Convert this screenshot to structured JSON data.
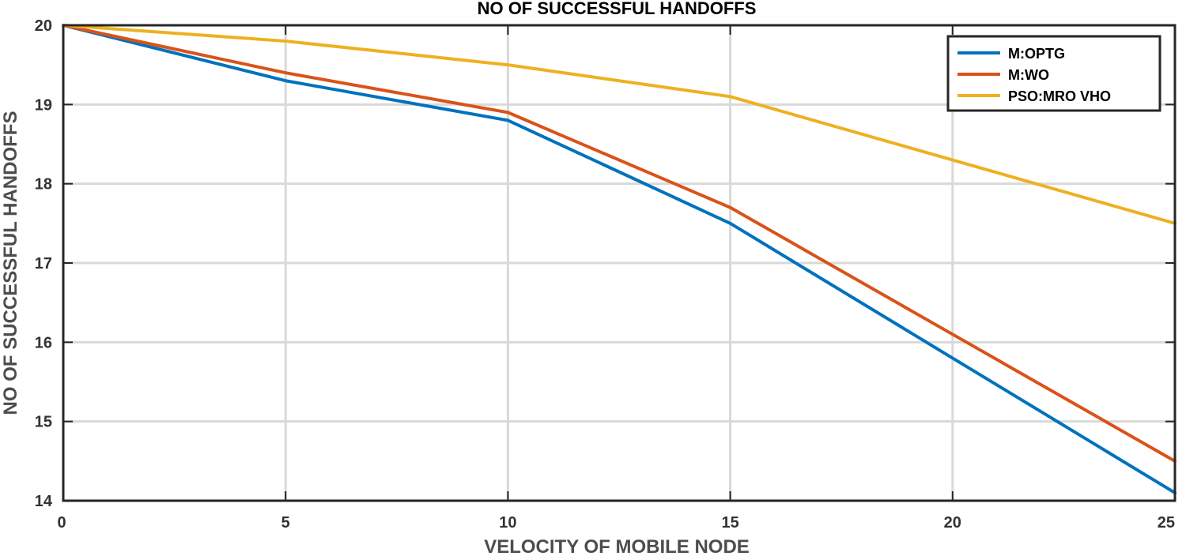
{
  "chart_data": {
    "type": "line",
    "title": "NO OF SUCCESSFUL HANDOFFS",
    "xlabel": "VELOCITY OF MOBILE NODE",
    "ylabel": "NO OF SUCCESSFUL HANDOFFS",
    "x": [
      0,
      5,
      10,
      15,
      20,
      25
    ],
    "xlim": [
      0,
      25
    ],
    "ylim": [
      14,
      20
    ],
    "xticks": [
      0,
      5,
      10,
      15,
      20,
      25
    ],
    "yticks": [
      14,
      15,
      16,
      17,
      18,
      19,
      20
    ],
    "grid": true,
    "legend_position": "top-right",
    "series": [
      {
        "name": "M:OPTG",
        "color": "#0072BD",
        "values": [
          20,
          19.3,
          18.8,
          17.5,
          15.8,
          14.1
        ]
      },
      {
        "name": "M:WO",
        "color": "#D95319",
        "values": [
          20,
          19.4,
          18.9,
          17.7,
          16.1,
          14.5
        ]
      },
      {
        "name": "PSO:MRO VHO",
        "color": "#EDB120",
        "values": [
          20,
          19.8,
          19.5,
          19.1,
          18.3,
          17.5
        ]
      }
    ]
  }
}
